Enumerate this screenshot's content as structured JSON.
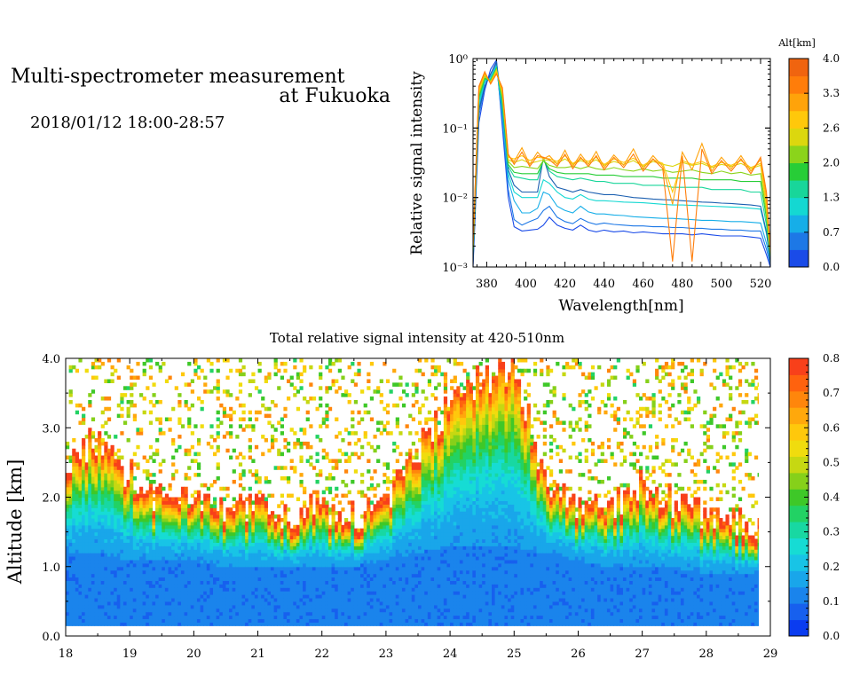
{
  "header": {
    "title_line1": "Multi-spectrometer measurement",
    "title_line2": "at Fukuoka",
    "datetime": "2018/01/12 18:00-28:57"
  },
  "chart_data": [
    {
      "type": "line",
      "title": "",
      "xlabel": "Wavelength[nm]",
      "ylabel": "Relative signal intensity",
      "xlim": [
        373,
        525
      ],
      "ylim": [
        0.001,
        1
      ],
      "yscale": "log",
      "x_ticks": [
        "380",
        "400",
        "420",
        "440",
        "460",
        "480",
        "500",
        "520"
      ],
      "y_ticks": [
        "10⁻³",
        "10⁻²",
        "10⁻¹",
        "10⁰"
      ],
      "colorbar": {
        "title": "Alt[km]",
        "ticks": [
          "0.0",
          "0.7",
          "1.3",
          "2.0",
          "2.6",
          "3.3",
          "4.0"
        ],
        "colors": [
          "#1a4be8",
          "#1d78e6",
          "#16aee8",
          "#14d8d2",
          "#18d69a",
          "#27cd37",
          "#8bd41b",
          "#dcd70e",
          "#ffc80b",
          "#ffa30a",
          "#ff7d0a",
          "#f0640f"
        ]
      },
      "x": [
        373,
        376,
        379,
        382,
        385,
        388,
        391,
        394,
        398,
        402,
        406,
        409,
        412,
        416,
        420,
        424,
        428,
        432,
        436,
        440,
        445,
        450,
        455,
        460,
        465,
        470,
        475,
        480,
        485,
        490,
        495,
        500,
        505,
        510,
        515,
        520,
        523,
        525
      ],
      "series": [
        {
          "color": "#1a4be8",
          "values": [
            0.001,
            0.12,
            0.35,
            0.7,
            0.95,
            0.1,
            0.01,
            0.0038,
            0.0033,
            0.0034,
            0.0035,
            0.004,
            0.0052,
            0.004,
            0.0036,
            0.0034,
            0.004,
            0.0034,
            0.0032,
            0.0034,
            0.0032,
            0.0033,
            0.0031,
            0.0032,
            0.0031,
            0.003,
            0.003,
            0.003,
            0.0029,
            0.003,
            0.0029,
            0.0028,
            0.0028,
            0.0028,
            0.0027,
            0.0026,
            0.0015,
            0.001
          ]
        },
        {
          "color": "#1d78e6",
          "values": [
            0.0012,
            0.15,
            0.4,
            0.6,
            0.85,
            0.12,
            0.013,
            0.0048,
            0.004,
            0.0045,
            0.005,
            0.0065,
            0.0075,
            0.0052,
            0.0045,
            0.0042,
            0.005,
            0.0044,
            0.0041,
            0.0043,
            0.0041,
            0.004,
            0.0039,
            0.0039,
            0.0038,
            0.0038,
            0.0037,
            0.0037,
            0.0036,
            0.0036,
            0.0035,
            0.0035,
            0.0034,
            0.0034,
            0.0033,
            0.0033,
            0.0018,
            0.0011
          ]
        },
        {
          "color": "#16aee8",
          "values": [
            0.0014,
            0.2,
            0.45,
            0.55,
            0.8,
            0.15,
            0.018,
            0.009,
            0.006,
            0.006,
            0.007,
            0.012,
            0.011,
            0.0075,
            0.0065,
            0.006,
            0.0075,
            0.0062,
            0.0058,
            0.0058,
            0.0056,
            0.0055,
            0.0053,
            0.0052,
            0.0051,
            0.005,
            0.005,
            0.0049,
            0.0048,
            0.0047,
            0.0047,
            0.0046,
            0.0045,
            0.0045,
            0.0044,
            0.0043,
            0.0022,
            0.0012
          ]
        },
        {
          "color": "#14d8d2",
          "values": [
            0.0015,
            0.22,
            0.48,
            0.52,
            0.78,
            0.18,
            0.022,
            0.012,
            0.01,
            0.01,
            0.01,
            0.018,
            0.016,
            0.012,
            0.01,
            0.0095,
            0.011,
            0.0095,
            0.009,
            0.009,
            0.0088,
            0.0086,
            0.0085,
            0.0084,
            0.0082,
            0.008,
            0.0078,
            0.0078,
            0.0077,
            0.0076,
            0.0075,
            0.0074,
            0.0073,
            0.0072,
            0.007,
            0.0068,
            0.003,
            0.0013
          ]
        },
        {
          "color": "#1b5fb0",
          "values": [
            0.0011,
            0.18,
            0.4,
            0.6,
            0.9,
            0.2,
            0.025,
            0.015,
            0.012,
            0.012,
            0.012,
            0.038,
            0.02,
            0.014,
            0.013,
            0.012,
            0.013,
            0.012,
            0.0115,
            0.011,
            0.011,
            0.0105,
            0.01,
            0.0098,
            0.0095,
            0.0093,
            0.0092,
            0.009,
            0.0088,
            0.0086,
            0.0085,
            0.0083,
            0.0082,
            0.008,
            0.0078,
            0.0075,
            0.0032,
            0.0012
          ]
        },
        {
          "color": "#18d69a",
          "values": [
            0.0016,
            0.25,
            0.5,
            0.5,
            0.75,
            0.22,
            0.028,
            0.02,
            0.019,
            0.018,
            0.018,
            0.036,
            0.024,
            0.02,
            0.019,
            0.018,
            0.019,
            0.018,
            0.017,
            0.017,
            0.016,
            0.016,
            0.016,
            0.015,
            0.015,
            0.015,
            0.014,
            0.014,
            0.014,
            0.014,
            0.013,
            0.013,
            0.013,
            0.013,
            0.012,
            0.012,
            0.004,
            0.0014
          ]
        },
        {
          "color": "#27cd37",
          "values": [
            0.0017,
            0.28,
            0.52,
            0.48,
            0.72,
            0.25,
            0.03,
            0.023,
            0.022,
            0.022,
            0.022,
            0.034,
            0.026,
            0.023,
            0.022,
            0.022,
            0.022,
            0.022,
            0.021,
            0.021,
            0.021,
            0.02,
            0.02,
            0.02,
            0.02,
            0.019,
            0.019,
            0.019,
            0.019,
            0.018,
            0.018,
            0.018,
            0.018,
            0.017,
            0.017,
            0.017,
            0.005,
            0.0014
          ]
        },
        {
          "color": "#8bd41b",
          "values": [
            0.0018,
            0.3,
            0.55,
            0.47,
            0.7,
            0.28,
            0.033,
            0.027,
            0.028,
            0.027,
            0.026,
            0.034,
            0.029,
            0.027,
            0.027,
            0.028,
            0.026,
            0.028,
            0.026,
            0.025,
            0.027,
            0.025,
            0.024,
            0.026,
            0.024,
            0.025,
            0.023,
            0.024,
            0.025,
            0.023,
            0.022,
            0.024,
            0.022,
            0.023,
            0.021,
            0.022,
            0.006,
            0.0015
          ]
        },
        {
          "color": "#dcd70e",
          "values": [
            0.0019,
            0.33,
            0.58,
            0.46,
            0.68,
            0.3,
            0.035,
            0.032,
            0.035,
            0.031,
            0.033,
            0.035,
            0.034,
            0.031,
            0.036,
            0.03,
            0.034,
            0.031,
            0.035,
            0.029,
            0.033,
            0.03,
            0.034,
            0.028,
            0.033,
            0.03,
            0.028,
            0.032,
            0.029,
            0.031,
            0.027,
            0.03,
            0.028,
            0.031,
            0.026,
            0.029,
            0.007,
            0.0016
          ]
        },
        {
          "color": "#ffc80b",
          "values": [
            0.002,
            0.35,
            0.6,
            0.45,
            0.65,
            0.32,
            0.038,
            0.036,
            0.04,
            0.034,
            0.038,
            0.037,
            0.036,
            0.033,
            0.04,
            0.031,
            0.036,
            0.033,
            0.038,
            0.03,
            0.036,
            0.032,
            0.037,
            0.029,
            0.035,
            0.031,
            0.012,
            0.034,
            0.03,
            0.033,
            0.028,
            0.032,
            0.029,
            0.034,
            0.027,
            0.031,
            0.008,
            0.0017
          ]
        },
        {
          "color": "#ffa30a",
          "values": [
            0.0021,
            0.38,
            0.62,
            0.44,
            0.62,
            0.35,
            0.04,
            0.033,
            0.052,
            0.03,
            0.045,
            0.036,
            0.04,
            0.03,
            0.048,
            0.028,
            0.042,
            0.03,
            0.046,
            0.027,
            0.041,
            0.029,
            0.05,
            0.026,
            0.04,
            0.028,
            0.008,
            0.045,
            0.025,
            0.06,
            0.024,
            0.038,
            0.026,
            0.04,
            0.024,
            0.035,
            0.01,
            0.0018
          ]
        },
        {
          "color": "#ff7d0a",
          "values": [
            0.0022,
            0.4,
            0.65,
            0.43,
            0.6,
            0.38,
            0.042,
            0.03,
            0.045,
            0.028,
            0.04,
            0.038,
            0.035,
            0.028,
            0.042,
            0.026,
            0.038,
            0.028,
            0.04,
            0.025,
            0.038,
            0.027,
            0.042,
            0.024,
            0.036,
            0.026,
            0.0012,
            0.04,
            0.0012,
            0.05,
            0.022,
            0.034,
            0.024,
            0.036,
            0.022,
            0.038,
            0.012,
            0.0018
          ]
        }
      ]
    },
    {
      "type": "heatmap",
      "title": "Total relative signal intensity at 420-510nm",
      "xlabel": "",
      "ylabel": "Altitude [km]",
      "xlim": [
        18,
        29
      ],
      "ylim": [
        0.0,
        4.0
      ],
      "data_xlim": [
        18.0,
        28.95
      ],
      "x_ticks": [
        "18",
        "19",
        "20",
        "21",
        "22",
        "23",
        "24",
        "25",
        "26",
        "27",
        "28",
        "29"
      ],
      "y_ticks": [
        "0.0",
        "1.0",
        "2.0",
        "3.0",
        "4.0"
      ],
      "colorbar": {
        "ticks": [
          "0.0",
          "0.1",
          "0.2",
          "0.3",
          "0.4",
          "0.5",
          "0.6",
          "0.7",
          "0.8"
        ],
        "range": [
          0.0,
          0.8
        ],
        "colors": [
          "#0a3cf0",
          "#1760ee",
          "#1a84ec",
          "#19a6ea",
          "#18c4e6",
          "#16dcd4",
          "#18d8a2",
          "#22d264",
          "#3ec828",
          "#86d01a",
          "#c6d812",
          "#f0dc0e",
          "#ffc80c",
          "#ffa80c",
          "#ff860c",
          "#ff620e",
          "#f8401a"
        ]
      },
      "profile_time_h": [
        18.0,
        18.5,
        19.0,
        19.5,
        20.0,
        20.5,
        21.0,
        21.5,
        22.0,
        22.5,
        23.0,
        23.5,
        24.0,
        24.5,
        25.0,
        25.5,
        26.0,
        26.5,
        27.0,
        27.5,
        28.0,
        28.5,
        28.95
      ],
      "cloud_base_km": [
        2.4,
        2.7,
        2.2,
        1.8,
        1.8,
        1.7,
        1.7,
        1.6,
        1.7,
        1.6,
        1.8,
        2.6,
        3.2,
        3.6,
        3.7,
        2.1,
        1.8,
        1.7,
        2.1,
        1.8,
        1.6,
        1.5,
        1.4
      ],
      "lower_layer_top_km": [
        1.2,
        1.2,
        1.1,
        1.1,
        1.1,
        1.0,
        1.0,
        1.0,
        1.0,
        1.0,
        1.1,
        1.2,
        1.3,
        1.3,
        1.3,
        1.2,
        1.1,
        1.0,
        1.0,
        1.0,
        0.9,
        0.9,
        0.9
      ]
    }
  ]
}
